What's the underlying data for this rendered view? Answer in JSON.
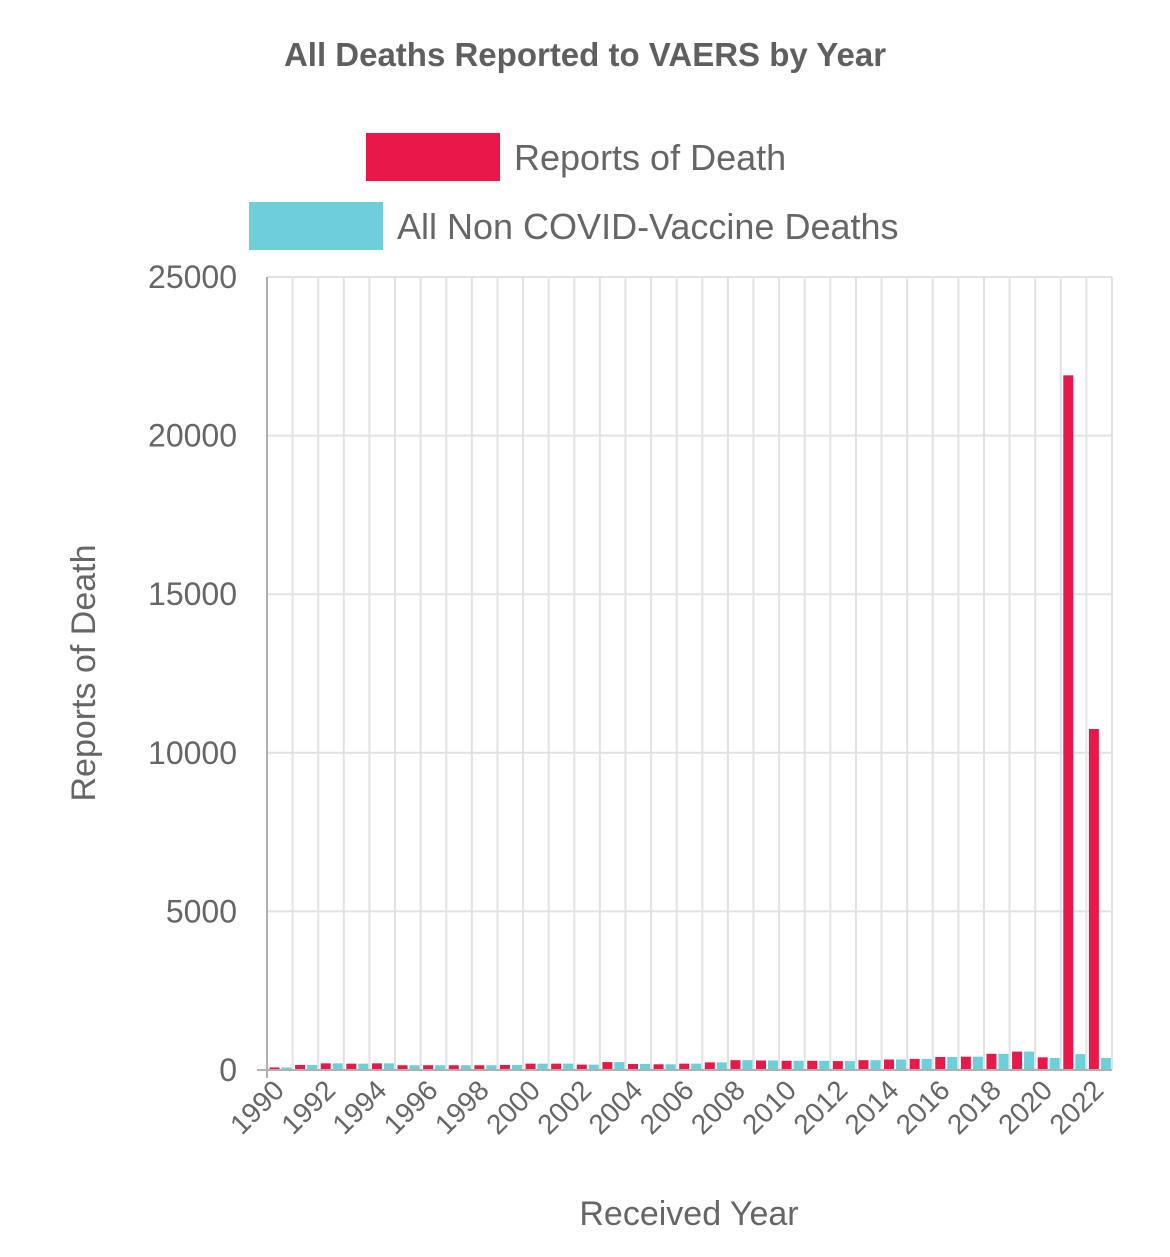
{
  "chart_data": {
    "type": "bar",
    "title": "All Deaths Reported to VAERS by Year",
    "xlabel": "Received Year",
    "ylabel": "Reports of Death",
    "ylim": [
      0,
      25000
    ],
    "y_ticks": [
      0,
      5000,
      10000,
      15000,
      20000,
      25000
    ],
    "grid": true,
    "legend_position": "top",
    "categories": [
      "1990",
      "1991",
      "1992",
      "1993",
      "1994",
      "1995",
      "1996",
      "1997",
      "1998",
      "1999",
      "2000",
      "2001",
      "2002",
      "2003",
      "2004",
      "2005",
      "2006",
      "2007",
      "2008",
      "2009",
      "2010",
      "2011",
      "2012",
      "2013",
      "2014",
      "2015",
      "2016",
      "2017",
      "2018",
      "2019",
      "2020",
      "2021",
      "2022"
    ],
    "x_tick_labels": [
      "1990",
      "1992",
      "1994",
      "1996",
      "1998",
      "2000",
      "2002",
      "2004",
      "2006",
      "2008",
      "2010",
      "2012",
      "2014",
      "2016",
      "2018",
      "2020",
      "2022"
    ],
    "series": [
      {
        "name": "Reports of Death",
        "color": "#e8194a",
        "values": [
          80,
          160,
          210,
          200,
          210,
          150,
          150,
          150,
          150,
          160,
          200,
          200,
          170,
          250,
          190,
          180,
          200,
          240,
          310,
          300,
          290,
          290,
          280,
          310,
          330,
          350,
          410,
          420,
          510,
          580,
          400,
          21900,
          10750
        ]
      },
      {
        "name": "All Non COVID-Vaccine Deaths",
        "color": "#6dcfda",
        "values": [
          80,
          160,
          210,
          200,
          210,
          150,
          150,
          150,
          150,
          160,
          200,
          200,
          170,
          250,
          190,
          180,
          200,
          240,
          310,
          300,
          290,
          290,
          280,
          310,
          330,
          350,
          410,
          420,
          510,
          580,
          380,
          500,
          380
        ]
      }
    ]
  }
}
